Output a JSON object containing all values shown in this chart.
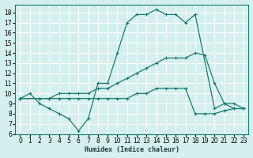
{
  "xlabel": "Humidex (Indice chaleur)",
  "bg_color": "#d4f0ee",
  "grid_color": "#ffffff",
  "line_color": "#1a7a6e",
  "xlim": [
    -0.5,
    23.5
  ],
  "ylim": [
    6,
    18.8
  ],
  "xticks": [
    0,
    1,
    2,
    3,
    4,
    5,
    6,
    7,
    8,
    9,
    10,
    11,
    12,
    13,
    14,
    15,
    16,
    17,
    18,
    19,
    20,
    21,
    22,
    23
  ],
  "yticks": [
    6,
    7,
    8,
    9,
    10,
    11,
    12,
    13,
    14,
    15,
    16,
    17,
    18
  ],
  "line1_x": [
    0,
    1,
    2,
    3,
    4,
    5,
    6,
    7,
    8,
    9,
    10,
    11,
    12,
    13,
    14,
    15,
    16,
    17,
    18,
    20,
    21,
    22,
    23
  ],
  "line1_y": [
    9.5,
    10.0,
    9.0,
    8.5,
    8.0,
    7.5,
    6.3,
    7.5,
    11.0,
    11.0,
    14.0,
    17.0,
    17.8,
    17.8,
    18.3,
    17.8,
    17.8,
    17.0,
    17.8,
    8.5,
    9.0,
    8.5,
    8.5
  ],
  "line2_x": [
    0,
    2,
    3,
    4,
    5,
    6,
    7,
    8,
    9,
    10,
    11,
    12,
    13,
    14,
    15,
    16,
    17,
    18,
    19,
    20,
    21,
    22,
    23
  ],
  "line2_y": [
    9.5,
    9.5,
    9.5,
    10.0,
    10.0,
    10.0,
    10.0,
    10.5,
    10.5,
    11.0,
    11.5,
    12.0,
    12.5,
    13.0,
    13.5,
    13.5,
    13.5,
    14.0,
    13.8,
    11.0,
    9.0,
    9.0,
    8.5
  ],
  "line3_x": [
    0,
    2,
    3,
    4,
    5,
    6,
    7,
    8,
    9,
    10,
    11,
    12,
    13,
    14,
    15,
    16,
    17,
    18,
    19,
    20,
    21,
    22,
    23
  ],
  "line3_y": [
    9.5,
    9.5,
    9.5,
    9.5,
    9.5,
    9.5,
    9.5,
    9.5,
    9.5,
    9.5,
    9.5,
    10.0,
    10.0,
    10.5,
    10.5,
    10.5,
    10.5,
    8.0,
    8.0,
    8.0,
    8.3,
    8.5,
    8.5
  ]
}
